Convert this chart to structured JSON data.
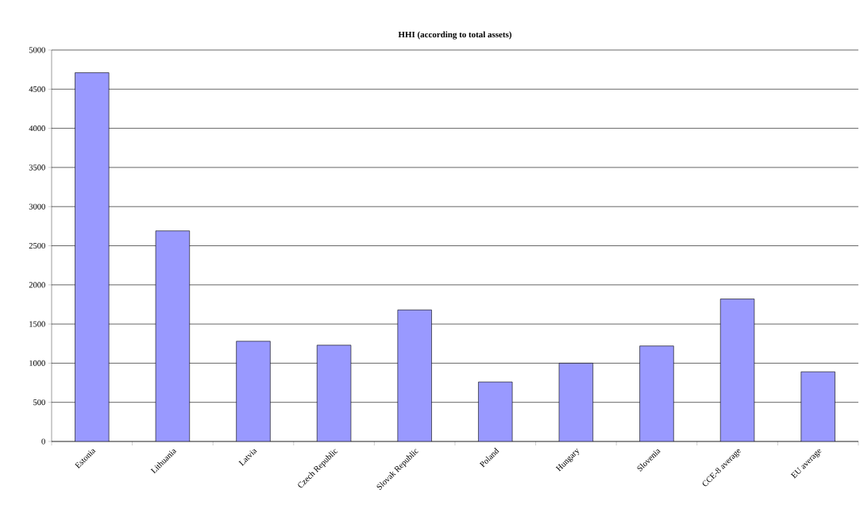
{
  "chart_data": {
    "type": "bar",
    "title": "HHI (according to total assets)",
    "categories": [
      "Estonia",
      "Lithuania",
      "Latvia",
      "Czech Republic",
      "Slovak Republic",
      "Poland",
      "Hungary",
      "Slovenia",
      "CCE-8 average",
      "EU average"
    ],
    "values": [
      4710,
      2690,
      1280,
      1230,
      1680,
      760,
      1000,
      1220,
      1820,
      890
    ],
    "color": "#9999ff",
    "ylim": [
      0,
      5000
    ],
    "yticks": [
      0,
      500,
      1000,
      1500,
      2000,
      2500,
      3000,
      3500,
      4000,
      4500,
      5000
    ],
    "grid": "y"
  }
}
